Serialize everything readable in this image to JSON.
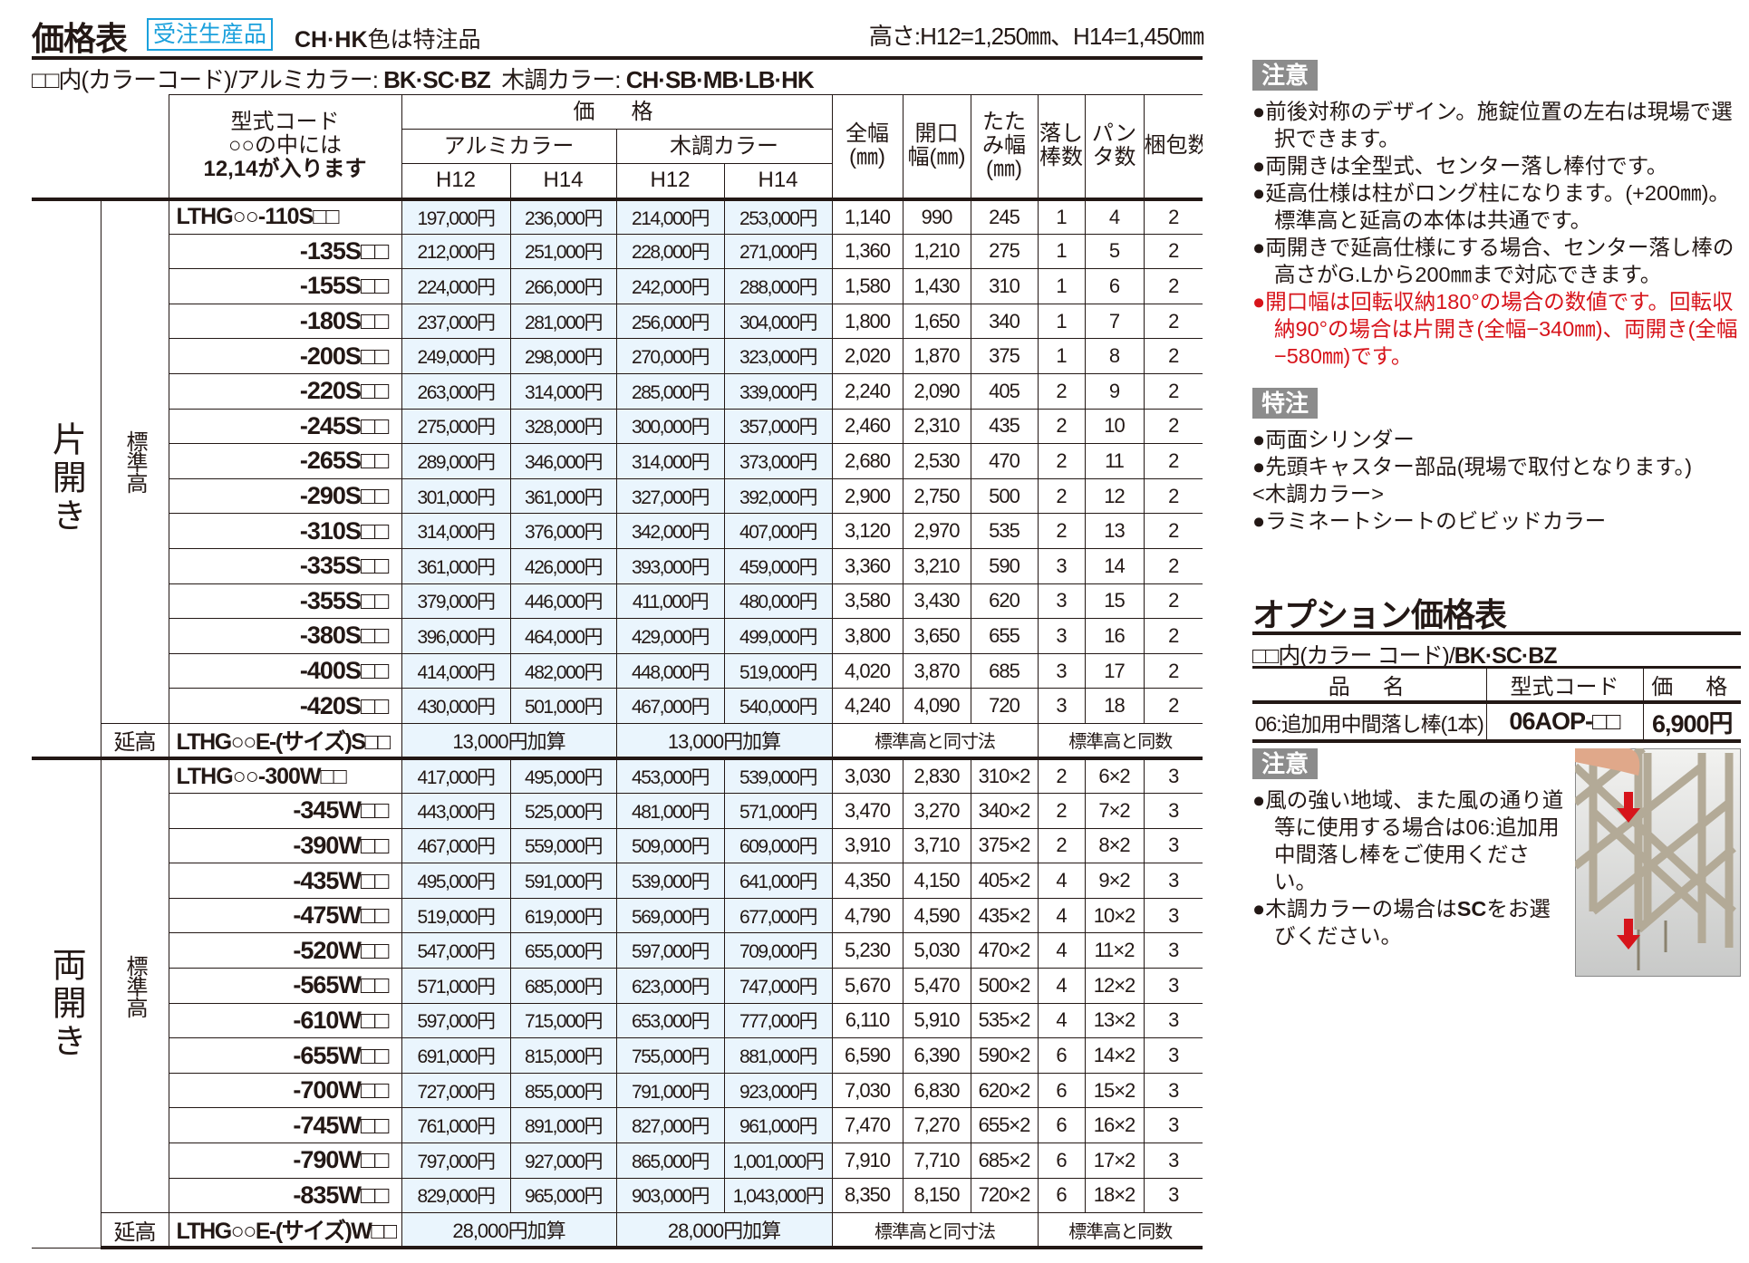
{
  "header": {
    "title": "価格表",
    "badge": "受注生産品",
    "special_note_bold": "CH·HK",
    "special_note": "色は特注品",
    "height_note": "高さ:H12=1,250㎜、H14=1,450㎜"
  },
  "color_line": {
    "prefix": "□□内(カラーコード)/アルミカラー:",
    "alumi": "BK·SC·BZ",
    "wood_label": "木調カラー:",
    "wood": "CH·SB·MB·LB·HK"
  },
  "table_header": {
    "model_code": "型式コード",
    "model_note1": "○○の中には",
    "model_note2": "12,14が入ります",
    "price": "価　格",
    "alumi": "アルミカラー",
    "wood": "木調カラー",
    "h12": "H12",
    "h14": "H14",
    "full_width": "全幅(㎜)",
    "opening": "開口幅(㎜)",
    "folded": "たたみ幅(㎜)",
    "drop_rods": "落し棒数",
    "panta": "パンタ数",
    "packages": "梱包数"
  },
  "single": {
    "label": "片開き",
    "std_label": "標準高",
    "ext_label": "延高",
    "rows": [
      [
        "LTHG○○-110S□□",
        "197,000円",
        "236,000円",
        "214,000円",
        "253,000円",
        "1,140",
        "990",
        "245",
        "1",
        "4",
        "2"
      ],
      [
        "-135S□□",
        "212,000円",
        "251,000円",
        "228,000円",
        "271,000円",
        "1,360",
        "1,210",
        "275",
        "1",
        "5",
        "2"
      ],
      [
        "-155S□□",
        "224,000円",
        "266,000円",
        "242,000円",
        "288,000円",
        "1,580",
        "1,430",
        "310",
        "1",
        "6",
        "2"
      ],
      [
        "-180S□□",
        "237,000円",
        "281,000円",
        "256,000円",
        "304,000円",
        "1,800",
        "1,650",
        "340",
        "1",
        "7",
        "2"
      ],
      [
        "-200S□□",
        "249,000円",
        "298,000円",
        "270,000円",
        "323,000円",
        "2,020",
        "1,870",
        "375",
        "1",
        "8",
        "2"
      ],
      [
        "-220S□□",
        "263,000円",
        "314,000円",
        "285,000円",
        "339,000円",
        "2,240",
        "2,090",
        "405",
        "2",
        "9",
        "2"
      ],
      [
        "-245S□□",
        "275,000円",
        "328,000円",
        "300,000円",
        "357,000円",
        "2,460",
        "2,310",
        "435",
        "2",
        "10",
        "2"
      ],
      [
        "-265S□□",
        "289,000円",
        "346,000円",
        "314,000円",
        "373,000円",
        "2,680",
        "2,530",
        "470",
        "2",
        "11",
        "2"
      ],
      [
        "-290S□□",
        "301,000円",
        "361,000円",
        "327,000円",
        "392,000円",
        "2,900",
        "2,750",
        "500",
        "2",
        "12",
        "2"
      ],
      [
        "-310S□□",
        "314,000円",
        "376,000円",
        "342,000円",
        "407,000円",
        "3,120",
        "2,970",
        "535",
        "2",
        "13",
        "2"
      ],
      [
        "-335S□□",
        "361,000円",
        "426,000円",
        "393,000円",
        "459,000円",
        "3,360",
        "3,210",
        "590",
        "3",
        "14",
        "2"
      ],
      [
        "-355S□□",
        "379,000円",
        "446,000円",
        "411,000円",
        "480,000円",
        "3,580",
        "3,430",
        "620",
        "3",
        "15",
        "2"
      ],
      [
        "-380S□□",
        "396,000円",
        "464,000円",
        "429,000円",
        "499,000円",
        "3,800",
        "3,650",
        "655",
        "3",
        "16",
        "2"
      ],
      [
        "-400S□□",
        "414,000円",
        "482,000円",
        "448,000円",
        "519,000円",
        "4,020",
        "3,870",
        "685",
        "3",
        "17",
        "2"
      ],
      [
        "-420S□□",
        "430,000円",
        "501,000円",
        "467,000円",
        "540,000円",
        "4,240",
        "4,090",
        "720",
        "3",
        "18",
        "2"
      ]
    ],
    "ext": {
      "code": "LTHG○○E-(サイズ)S□□",
      "alumi": "13,000円加算",
      "wood": "13,000円加算",
      "dims": "標準高と同寸法",
      "counts": "標準高と同数"
    }
  },
  "double": {
    "label": "両開き",
    "std_label": "標準高",
    "ext_label": "延高",
    "rows": [
      [
        "LTHG○○-300W□□",
        "417,000円",
        "495,000円",
        "453,000円",
        "539,000円",
        "3,030",
        "2,830",
        "310×2",
        "2",
        "6×2",
        "3"
      ],
      [
        "-345W□□",
        "443,000円",
        "525,000円",
        "481,000円",
        "571,000円",
        "3,470",
        "3,270",
        "340×2",
        "2",
        "7×2",
        "3"
      ],
      [
        "-390W□□",
        "467,000円",
        "559,000円",
        "509,000円",
        "609,000円",
        "3,910",
        "3,710",
        "375×2",
        "2",
        "8×2",
        "3"
      ],
      [
        "-435W□□",
        "495,000円",
        "591,000円",
        "539,000円",
        "641,000円",
        "4,350",
        "4,150",
        "405×2",
        "4",
        "9×2",
        "3"
      ],
      [
        "-475W□□",
        "519,000円",
        "619,000円",
        "569,000円",
        "677,000円",
        "4,790",
        "4,590",
        "435×2",
        "4",
        "10×2",
        "3"
      ],
      [
        "-520W□□",
        "547,000円",
        "655,000円",
        "597,000円",
        "709,000円",
        "5,230",
        "5,030",
        "470×2",
        "4",
        "11×2",
        "3"
      ],
      [
        "-565W□□",
        "571,000円",
        "685,000円",
        "623,000円",
        "747,000円",
        "5,670",
        "5,470",
        "500×2",
        "4",
        "12×2",
        "3"
      ],
      [
        "-610W□□",
        "597,000円",
        "715,000円",
        "653,000円",
        "777,000円",
        "6,110",
        "5,910",
        "535×2",
        "4",
        "13×2",
        "3"
      ],
      [
        "-655W□□",
        "691,000円",
        "815,000円",
        "755,000円",
        "881,000円",
        "6,590",
        "6,390",
        "590×2",
        "6",
        "14×2",
        "3"
      ],
      [
        "-700W□□",
        "727,000円",
        "855,000円",
        "791,000円",
        "923,000円",
        "7,030",
        "6,830",
        "620×2",
        "6",
        "15×2",
        "3"
      ],
      [
        "-745W□□",
        "761,000円",
        "891,000円",
        "827,000円",
        "961,000円",
        "7,470",
        "7,270",
        "655×2",
        "6",
        "16×2",
        "3"
      ],
      [
        "-790W□□",
        "797,000円",
        "927,000円",
        "865,000円",
        "1,001,000円",
        "7,910",
        "7,710",
        "685×2",
        "6",
        "17×2",
        "3"
      ],
      [
        "-835W□□",
        "829,000円",
        "965,000円",
        "903,000円",
        "1,043,000円",
        "8,350",
        "8,150",
        "720×2",
        "6",
        "18×2",
        "3"
      ]
    ],
    "ext": {
      "code": "LTHG○○E-(サイズ)W□□",
      "alumi": "28,000円加算",
      "wood": "28,000円加算",
      "dims": "標準高と同寸法",
      "counts": "標準高と同数"
    }
  },
  "caution": {
    "label": "注意",
    "items": [
      "●前後対称のデザイン。施錠位置の左右は現場で選択できます。",
      "●両開きは全型式、センター落し棒付です。",
      "●延高仕様は柱がロング柱になります。(+200㎜)。標準高と延高の本体は共通です。",
      "●両開きで延高仕様にする場合、センター落し棒の高さがG.Lから200㎜まで対応できます。"
    ],
    "red_item": "●開口幅は回転収納180°の場合の数値です。回転収納90°の場合は片開き(全幅−340㎜)、両開き(全幅−580㎜)です。"
  },
  "special": {
    "label": "特注",
    "items": [
      "●両面シリンダー",
      "●先頭キャスター部品(現場で取付となります。)"
    ],
    "wood_heading": "<木調カラー>",
    "wood_item": "●ラミネートシートのビビッドカラー"
  },
  "option": {
    "title": "オプション価格表",
    "color_line_prefix": "□□内(カラー コード)/",
    "color_line_bold": "BK·SC·BZ",
    "headers": [
      "品　名",
      "型式コード",
      "価　格"
    ],
    "row": {
      "name": "06:追加用中間落し棒(1本)",
      "code": "06AOP-□□",
      "price": "6,900円"
    },
    "caution_label": "注意",
    "caution1": "●風の強い地域、また風の通り道等に使用する場合は06:追加用中間落し棒をご使用ください。",
    "caution2_pre": "●木調カラーの場合は",
    "caution2_bold": "SC",
    "caution2_post": "をお選びください。"
  },
  "colors": {
    "badge": "#1aa0dc",
    "price_bg": "#eaf5fd",
    "label_bg": "#8c8c8c",
    "red_text": "#d7141b",
    "arrow": "#d7141b"
  }
}
